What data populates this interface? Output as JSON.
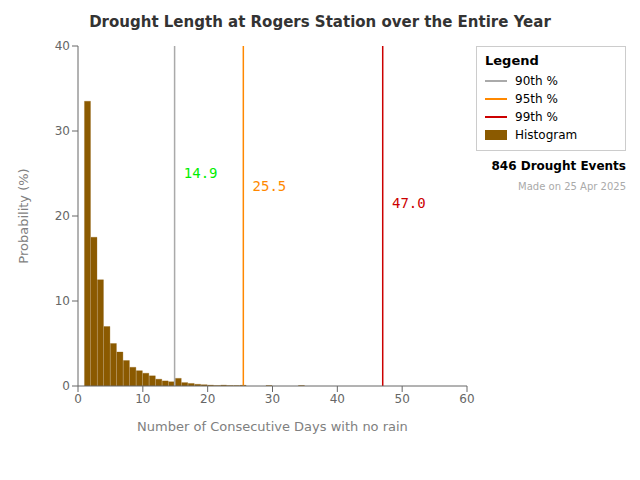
{
  "chart_data": {
    "type": "histogram",
    "title": "Drought Length at Rogers Station over the Entire Year",
    "x_label": "Number of Consecutive Days with no rain",
    "y_label": "Probability (%)",
    "xlim": [
      0,
      60
    ],
    "ylim": [
      0,
      40
    ],
    "xticks": [
      0,
      10,
      20,
      30,
      40,
      50,
      60
    ],
    "yticks": [
      0,
      10,
      20,
      30,
      40
    ],
    "bins": [
      0,
      1,
      2,
      3,
      4,
      5,
      6,
      7,
      8,
      9,
      10,
      11,
      12,
      13,
      14,
      15,
      16,
      17,
      18,
      19,
      20,
      21,
      22,
      23,
      24,
      25,
      26,
      27,
      28,
      29,
      30,
      31,
      32,
      33,
      34,
      35,
      36,
      37,
      38,
      39,
      40,
      41,
      42,
      43,
      44,
      45,
      46,
      47,
      48,
      49,
      50,
      51,
      52,
      53,
      54,
      55,
      56,
      57,
      58,
      59,
      60
    ],
    "series": [
      {
        "name": "Histogram",
        "type": "bar",
        "color": "#8B5A00",
        "values": [
          0.0,
          33.5,
          17.5,
          12.5,
          7.0,
          5.0,
          4.0,
          3.0,
          2.2,
          1.8,
          1.5,
          1.2,
          0.8,
          0.6,
          0.5,
          0.9,
          0.4,
          0.3,
          0.2,
          0.15,
          0.1,
          0.05,
          0.1,
          0.05,
          0.05,
          0.08,
          0.0,
          0.0,
          0.0,
          0.05,
          0.0,
          0.0,
          0.0,
          0.0,
          0.05,
          0.0,
          0.0,
          0.0,
          0.0,
          0.0,
          0.0,
          0.0,
          0.0,
          0.0,
          0.0,
          0.0,
          0.0,
          0.0,
          0.0,
          0.0,
          0.0,
          0.0,
          0.0,
          0.0,
          0.0,
          0.0,
          0.0,
          0.0,
          0.0,
          0.0
        ]
      }
    ],
    "vlines": [
      {
        "name": "90th %",
        "x": 14.9,
        "color": "#aaaaaa"
      },
      {
        "name": "95th %",
        "x": 25.5,
        "color": "#ff8800"
      },
      {
        "name": "99th %",
        "x": 47.0,
        "color": "#cc0000"
      }
    ],
    "annotations": [
      {
        "text": "14.9",
        "x": 15.4,
        "y": 25.0,
        "color": "#00ee00"
      },
      {
        "text": "25.5",
        "x": 26.0,
        "y": 23.5,
        "color": "#ff8800"
      },
      {
        "text": "47.0",
        "x": 47.5,
        "y": 21.5,
        "color": "#cc0000"
      },
      {
        "text": "846 Drought Events"
      },
      {
        "text": "Made on 25 Apr 2025",
        "color": "#aaaaaa"
      }
    ],
    "legend_title": "Legend",
    "legend": "upper right",
    "grid": false
  }
}
